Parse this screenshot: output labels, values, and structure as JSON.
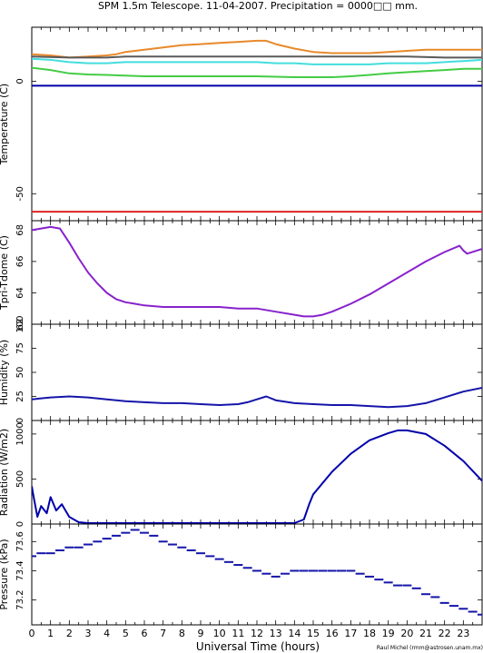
{
  "title": "SPM 1.5m Telescope. 11-04-2007. Precipitation = 0000□□ mm.",
  "xlabel": "Universal Time (hours)",
  "credit": "Raul Michel (rmm@astrosen.unam.mx)",
  "x_ticks": [
    "0",
    "1",
    "2",
    "3",
    "4",
    "5",
    "6",
    "7",
    "8",
    "9",
    "10",
    "11",
    "12",
    "13",
    "14",
    "15",
    "16",
    "17",
    "18",
    "19",
    "20",
    "21",
    "22",
    "23"
  ],
  "chart_data": [
    {
      "type": "line",
      "ylabel": "Temperature (C)",
      "ylim": [
        -62,
        24
      ],
      "y_ticks": [
        0,
        -50
      ],
      "series": [
        {
          "color": "#e8892b",
          "x": [
            0,
            1,
            2,
            3,
            4,
            4.5,
            5,
            6,
            7,
            8,
            9,
            10,
            11,
            12,
            12.5,
            13,
            14,
            15,
            16,
            17,
            18,
            19,
            20,
            21,
            22,
            23,
            24
          ],
          "y": [
            12,
            11.5,
            10.5,
            11,
            11.5,
            12,
            13,
            14,
            15,
            16,
            16.5,
            17,
            17.5,
            18,
            18,
            16.5,
            14.5,
            13,
            12.5,
            12.5,
            12.5,
            13,
            13.5,
            14,
            14,
            14,
            14
          ]
        },
        {
          "color": "#5a5a5a",
          "x": [
            0,
            2,
            4,
            5,
            6,
            8,
            10,
            12,
            14,
            16,
            18,
            20,
            22,
            24
          ],
          "y": [
            11,
            10.5,
            10.5,
            11,
            11,
            11,
            11,
            11,
            11,
            11,
            11,
            11,
            10.5,
            10.5
          ]
        },
        {
          "color": "#44dddd",
          "x": [
            0,
            1,
            2,
            3,
            4,
            5,
            6,
            7,
            8,
            9,
            10,
            11,
            12,
            13,
            14,
            15,
            16,
            17,
            18,
            19,
            20,
            21,
            22,
            23,
            24
          ],
          "y": [
            10,
            9.5,
            8.5,
            8,
            8,
            8.5,
            8.5,
            8.5,
            8.5,
            8.5,
            8.5,
            8.5,
            8.5,
            8,
            8,
            7.5,
            7.5,
            7.5,
            7.5,
            8,
            8,
            8,
            8.5,
            9,
            9.5
          ]
        },
        {
          "color": "#44cc44",
          "x": [
            0,
            1,
            2,
            3,
            4,
            5,
            6,
            7,
            8,
            9,
            10,
            11,
            12,
            13,
            14,
            15,
            16,
            17,
            18,
            19,
            20,
            21,
            22,
            23,
            24
          ],
          "y": [
            6,
            5,
            3.5,
            3,
            2.8,
            2.5,
            2.2,
            2.2,
            2.2,
            2.2,
            2.2,
            2.2,
            2.2,
            2,
            1.8,
            1.8,
            1.8,
            2.2,
            2.8,
            3.5,
            4,
            4.5,
            5,
            5.5,
            5.5
          ]
        },
        {
          "color": "#0000aa",
          "x": [
            0,
            24
          ],
          "y": [
            -2,
            -2
          ]
        },
        {
          "color": "#dd2222",
          "x": [
            0,
            24
          ],
          "y": [
            -58,
            -58
          ]
        }
      ]
    },
    {
      "type": "line",
      "ylabel": "Tpri-Tdome (C)",
      "ylim": [
        62,
        68.6
      ],
      "y_ticks": [
        68,
        66,
        64,
        62
      ],
      "series": [
        {
          "color": "#8822cc",
          "x": [
            0,
            0.5,
            1,
            1.5,
            2,
            2.5,
            3,
            3.5,
            4,
            4.5,
            5,
            5.5,
            6,
            7,
            8,
            9,
            10,
            11,
            12,
            13,
            14,
            14.5,
            15,
            15.5,
            16,
            17,
            18,
            19,
            20,
            21,
            22,
            22.8,
            23,
            23.2,
            24
          ],
          "y": [
            68,
            68.1,
            68.2,
            68.1,
            67.2,
            66.2,
            65.3,
            64.6,
            64.0,
            63.6,
            63.4,
            63.3,
            63.2,
            63.1,
            63.1,
            63.1,
            63.1,
            63.0,
            63.0,
            62.8,
            62.6,
            62.5,
            62.5,
            62.6,
            62.8,
            63.3,
            63.9,
            64.6,
            65.3,
            66.0,
            66.6,
            67.0,
            66.7,
            66.5,
            66.8
          ]
        }
      ]
    },
    {
      "type": "line",
      "ylabel": "Humidity (%)",
      "ylim": [
        0,
        100
      ],
      "y_ticks": [
        0,
        25,
        50,
        75,
        100
      ],
      "series": [
        {
          "color": "#1515aa",
          "x": [
            0,
            0.5,
            1,
            2,
            3,
            4,
            5,
            6,
            7,
            8,
            9,
            10,
            11,
            11.5,
            12,
            12.5,
            13,
            14,
            15,
            16,
            17,
            18,
            19,
            20,
            21,
            22,
            23,
            24
          ],
          "y": [
            22,
            23,
            24,
            25,
            24,
            22,
            20,
            19,
            18,
            18,
            17,
            16,
            17,
            19,
            22,
            25,
            21,
            18,
            17,
            16,
            16,
            15,
            14,
            15,
            18,
            24,
            30,
            34
          ]
        }
      ]
    },
    {
      "type": "line",
      "ylabel": "Radiation (W/m2)",
      "ylim": [
        0,
        1150
      ],
      "y_ticks": [
        0,
        500,
        1000
      ],
      "series": [
        {
          "color": "#0000aa",
          "x": [
            0,
            0.1,
            0.3,
            0.5,
            0.8,
            1,
            1.3,
            1.6,
            2,
            2.5,
            3,
            5,
            10,
            13,
            14,
            14.5,
            14.8,
            15,
            16,
            17,
            18,
            19,
            19.5,
            20,
            21,
            22,
            23,
            24
          ],
          "y": [
            420,
            300,
            80,
            200,
            120,
            300,
            150,
            220,
            80,
            20,
            10,
            10,
            10,
            10,
            10,
            50,
            230,
            330,
            580,
            780,
            930,
            1010,
            1040,
            1040,
            1000,
            870,
            700,
            480
          ]
        }
      ]
    },
    {
      "type": "scatter",
      "ylabel": "Pressure (kPa)",
      "ylim": [
        73.03,
        73.72
      ],
      "y_ticks": [
        73.6,
        73.4,
        73.2
      ],
      "series": [
        {
          "color": "#1515aa",
          "x": [
            0,
            0.5,
            1,
            1.5,
            2,
            2.5,
            3,
            3.5,
            4,
            4.5,
            5,
            5.5,
            6,
            6.5,
            7,
            7.5,
            8,
            8.5,
            9,
            9.5,
            10,
            10.5,
            11,
            11.5,
            12,
            12.5,
            13,
            13.5,
            14,
            14.5,
            15,
            15.5,
            16,
            16.5,
            17,
            17.5,
            18,
            18.5,
            19,
            19.5,
            20,
            20.5,
            21,
            21.5,
            22,
            22.5,
            23,
            23.5,
            24
          ],
          "y": [
            73.5,
            73.52,
            73.52,
            73.54,
            73.56,
            73.56,
            73.58,
            73.6,
            73.62,
            73.64,
            73.66,
            73.68,
            73.66,
            73.64,
            73.6,
            73.58,
            73.56,
            73.54,
            73.52,
            73.5,
            73.48,
            73.46,
            73.44,
            73.42,
            73.4,
            73.38,
            73.36,
            73.38,
            73.4,
            73.4,
            73.4,
            73.4,
            73.4,
            73.4,
            73.4,
            73.38,
            73.36,
            73.34,
            73.32,
            73.3,
            73.3,
            73.28,
            73.24,
            73.22,
            73.18,
            73.16,
            73.14,
            73.12,
            73.1
          ]
        }
      ]
    }
  ]
}
